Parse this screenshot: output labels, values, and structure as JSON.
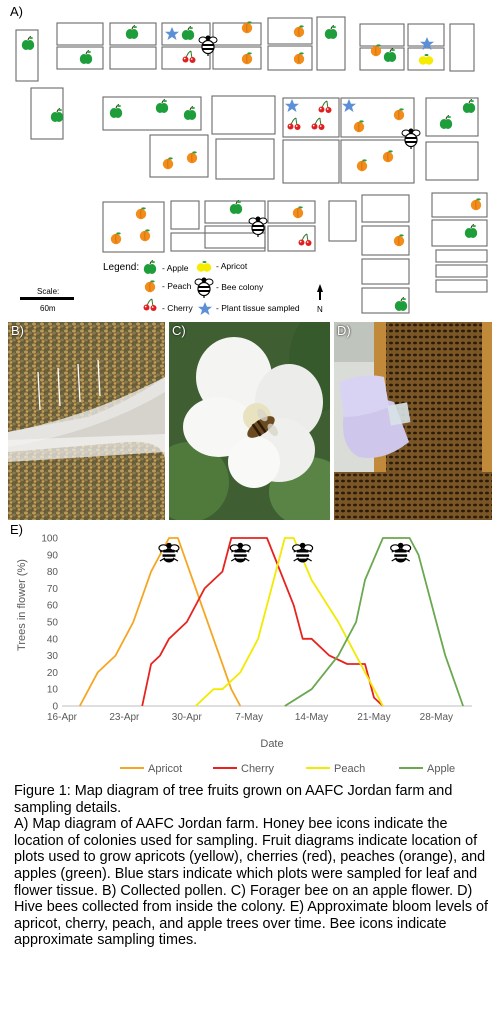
{
  "panels": {
    "a_label": "A)",
    "b_label": "B)",
    "c_label": "C)",
    "d_label": "D)",
    "e_label": "E)"
  },
  "map": {
    "scale_label": "Scale:",
    "scale_value": "60m",
    "north_label": "N",
    "legend": {
      "title": "Legend:",
      "items": [
        {
          "icon": "apple-icon",
          "label": "- Apple"
        },
        {
          "icon": "apricot-icon",
          "label": "- Apricot"
        },
        {
          "icon": "peach-icon",
          "label": "- Peach"
        },
        {
          "icon": "bee-colony-icon",
          "label": "- Bee colony"
        },
        {
          "icon": "cherry-icon",
          "label": "- Cherry"
        },
        {
          "icon": "star-icon",
          "label": "- Plant tissue sampled"
        }
      ]
    },
    "colors": {
      "apple": "#1e9e3a",
      "apricot": "#f2ea00",
      "peach": "#f28c1a",
      "cherry": "#e02020",
      "star": "#5b8fd6"
    }
  },
  "chart_data": {
    "type": "line",
    "title": "",
    "xlabel": "Date",
    "ylabel": "Trees in flower (%)",
    "ylim": [
      0,
      100
    ],
    "yticks": [
      0,
      10,
      20,
      30,
      40,
      50,
      60,
      70,
      80,
      90,
      100
    ],
    "xlim": [
      "16-Apr",
      "1-Jun"
    ],
    "xtick_labels": [
      "16-Apr",
      "23-Apr",
      "30-Apr",
      "7-May",
      "14-May",
      "21-May",
      "28-May"
    ],
    "grid": false,
    "legend_position": "bottom",
    "series": [
      {
        "name": "Apricot",
        "color": "#f5a623",
        "points": [
          [
            "18-Apr",
            0
          ],
          [
            "20-Apr",
            20
          ],
          [
            "22-Apr",
            30
          ],
          [
            "24-Apr",
            50
          ],
          [
            "26-Apr",
            80
          ],
          [
            "28-Apr",
            100
          ],
          [
            "29-Apr",
            100
          ],
          [
            "1-May",
            70
          ],
          [
            "3-May",
            40
          ],
          [
            "5-May",
            10
          ],
          [
            "6-May",
            0
          ]
        ]
      },
      {
        "name": "Cherry",
        "color": "#e8231e",
        "points": [
          [
            "25-Apr",
            0
          ],
          [
            "26-Apr",
            25
          ],
          [
            "27-Apr",
            30
          ],
          [
            "28-Apr",
            40
          ],
          [
            "30-Apr",
            50
          ],
          [
            "2-May",
            70
          ],
          [
            "4-May",
            80
          ],
          [
            "5-May",
            100
          ],
          [
            "9-May",
            100
          ],
          [
            "12-May",
            60
          ],
          [
            "13-May",
            40
          ],
          [
            "14-May",
            40
          ],
          [
            "16-May",
            30
          ],
          [
            "18-May",
            25
          ],
          [
            "20-May",
            25
          ],
          [
            "21-May",
            5
          ],
          [
            "22-May",
            0
          ]
        ]
      },
      {
        "name": "Peach",
        "color": "#f2ea00",
        "points": [
          [
            "1-May",
            0
          ],
          [
            "3-May",
            10
          ],
          [
            "4-May",
            10
          ],
          [
            "6-May",
            20
          ],
          [
            "8-May",
            40
          ],
          [
            "10-May",
            80
          ],
          [
            "11-May",
            100
          ],
          [
            "12-May",
            100
          ],
          [
            "14-May",
            75
          ],
          [
            "17-May",
            50
          ],
          [
            "19-May",
            30
          ],
          [
            "21-May",
            10
          ],
          [
            "22-May",
            0
          ]
        ]
      },
      {
        "name": "Apple",
        "color": "#6aa84f",
        "points": [
          [
            "11-May",
            0
          ],
          [
            "14-May",
            10
          ],
          [
            "17-May",
            30
          ],
          [
            "19-May",
            50
          ],
          [
            "20-May",
            75
          ],
          [
            "22-May",
            100
          ],
          [
            "25-May",
            100
          ],
          [
            "26-May",
            90
          ],
          [
            "28-May",
            50
          ],
          [
            "29-May",
            30
          ],
          [
            "31-May",
            0
          ]
        ]
      }
    ],
    "bee_markers": [
      "28-Apr",
      "6-May",
      "13-May",
      "24-May"
    ]
  },
  "caption": {
    "title": "Figure 1: Map diagram of tree fruits grown on AAFC Jordan farm and sampling details.",
    "body": "A) Map diagram of AAFC Jordan farm. Honey bee icons indicate the location of colonies used for sampling. Fruit diagrams indicate location of plots used to grow apricots (yellow), cherries (red), peaches (orange), and apples (green). Blue stars indicate which plots were sampled for leaf and flower tissue. B) Collected pollen. C) Forager bee on an apple flower. D) Hive bees collected from inside the colony. E) Approximate bloom levels of apricot, cherry, peach, and apple trees over time. Bee icons indicate approximate sampling times."
  }
}
